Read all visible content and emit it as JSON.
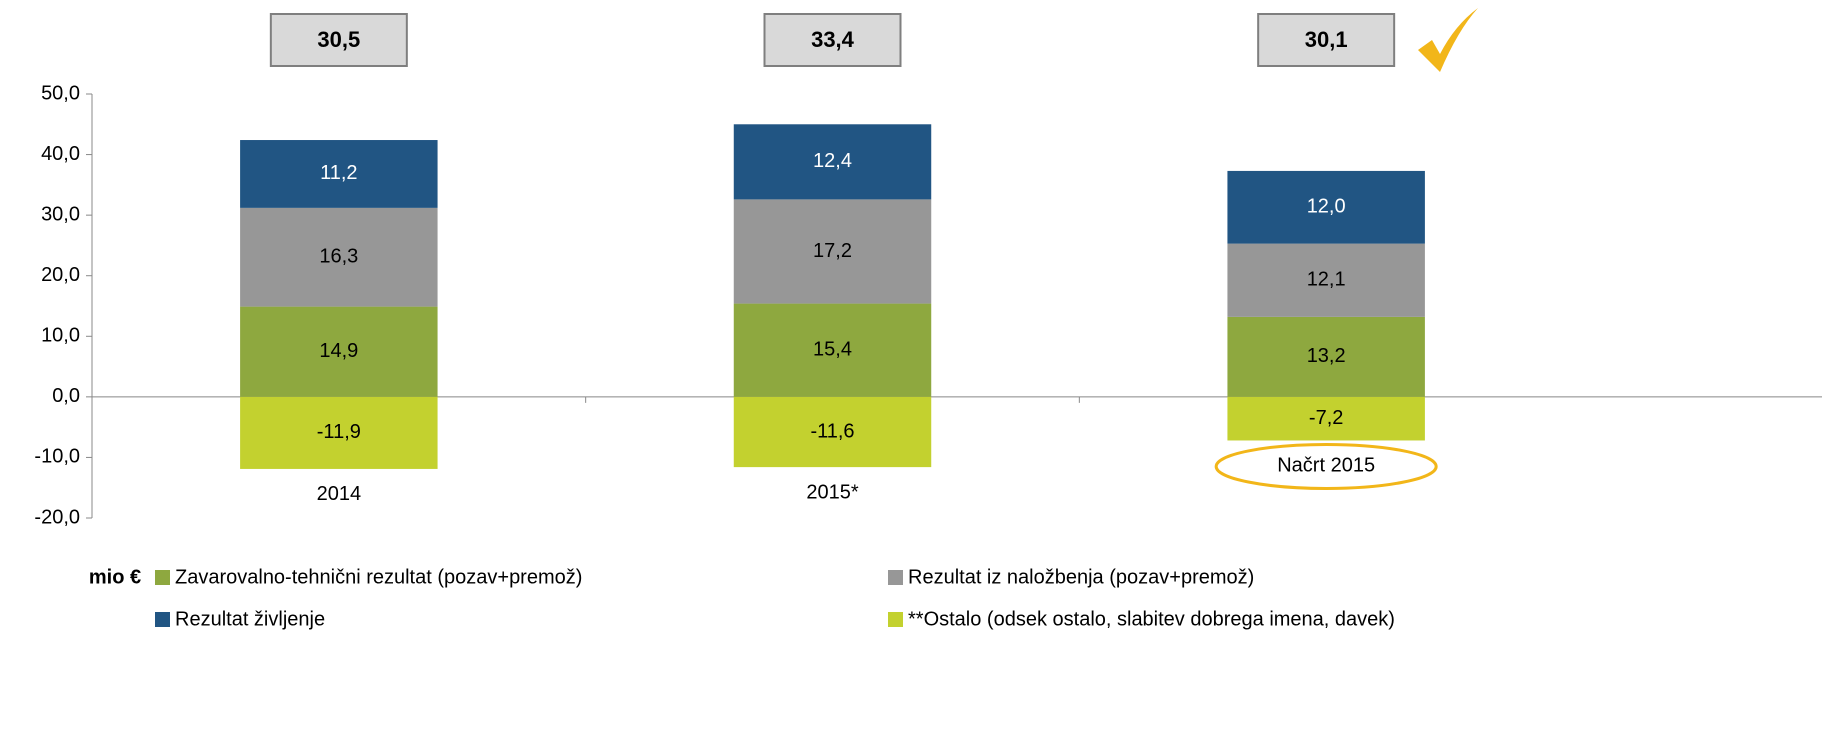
{
  "chart_data": {
    "type": "stacked_bar",
    "categories": [
      "2014",
      "2015*",
      "Načrt 2015"
    ],
    "series": [
      {
        "name": "Zavarovalno-tehnični rezultat (pozav+premož)",
        "color": "#8ea83f",
        "values": [
          14.9,
          15.4,
          13.2
        ],
        "value_labels": [
          "14,9",
          "15,4",
          "13,2"
        ]
      },
      {
        "name": "Rezultat iz naložbenja (pozav+premož)",
        "color": "#979797",
        "values": [
          16.3,
          17.2,
          12.1
        ],
        "value_labels": [
          "16,3",
          "17,2",
          "12,1"
        ]
      },
      {
        "name": "Rezultat življenje",
        "color": "#215583",
        "values": [
          11.2,
          12.4,
          12.0
        ],
        "value_labels": [
          "11,2",
          "12,4",
          "12,0"
        ]
      },
      {
        "name": "**Ostalo (odsek ostalo, slabitev dobrega imena, davek)",
        "color": "#c3d12f",
        "values": [
          -11.9,
          -11.6,
          -7.2
        ],
        "value_labels": [
          "-11,9",
          "-11,6",
          "-7,2"
        ]
      }
    ],
    "totals": [
      30.5,
      33.4,
      30.1
    ],
    "totals_labels": [
      "30,5",
      "33,4",
      "30,1"
    ],
    "y_label": "mio €",
    "ylim": [
      -20,
      50
    ],
    "yticks": [
      {
        "value": -20,
        "label": "-20,0"
      },
      {
        "value": -10,
        "label": "-10,0"
      },
      {
        "value": 0,
        "label": "0,0"
      },
      {
        "value": 10,
        "label": "10,0"
      },
      {
        "value": 20,
        "label": "20,0"
      },
      {
        "value": 30,
        "label": "30,0"
      },
      {
        "value": 40,
        "label": "40,0"
      },
      {
        "value": 50,
        "label": "50,0"
      }
    ]
  }
}
